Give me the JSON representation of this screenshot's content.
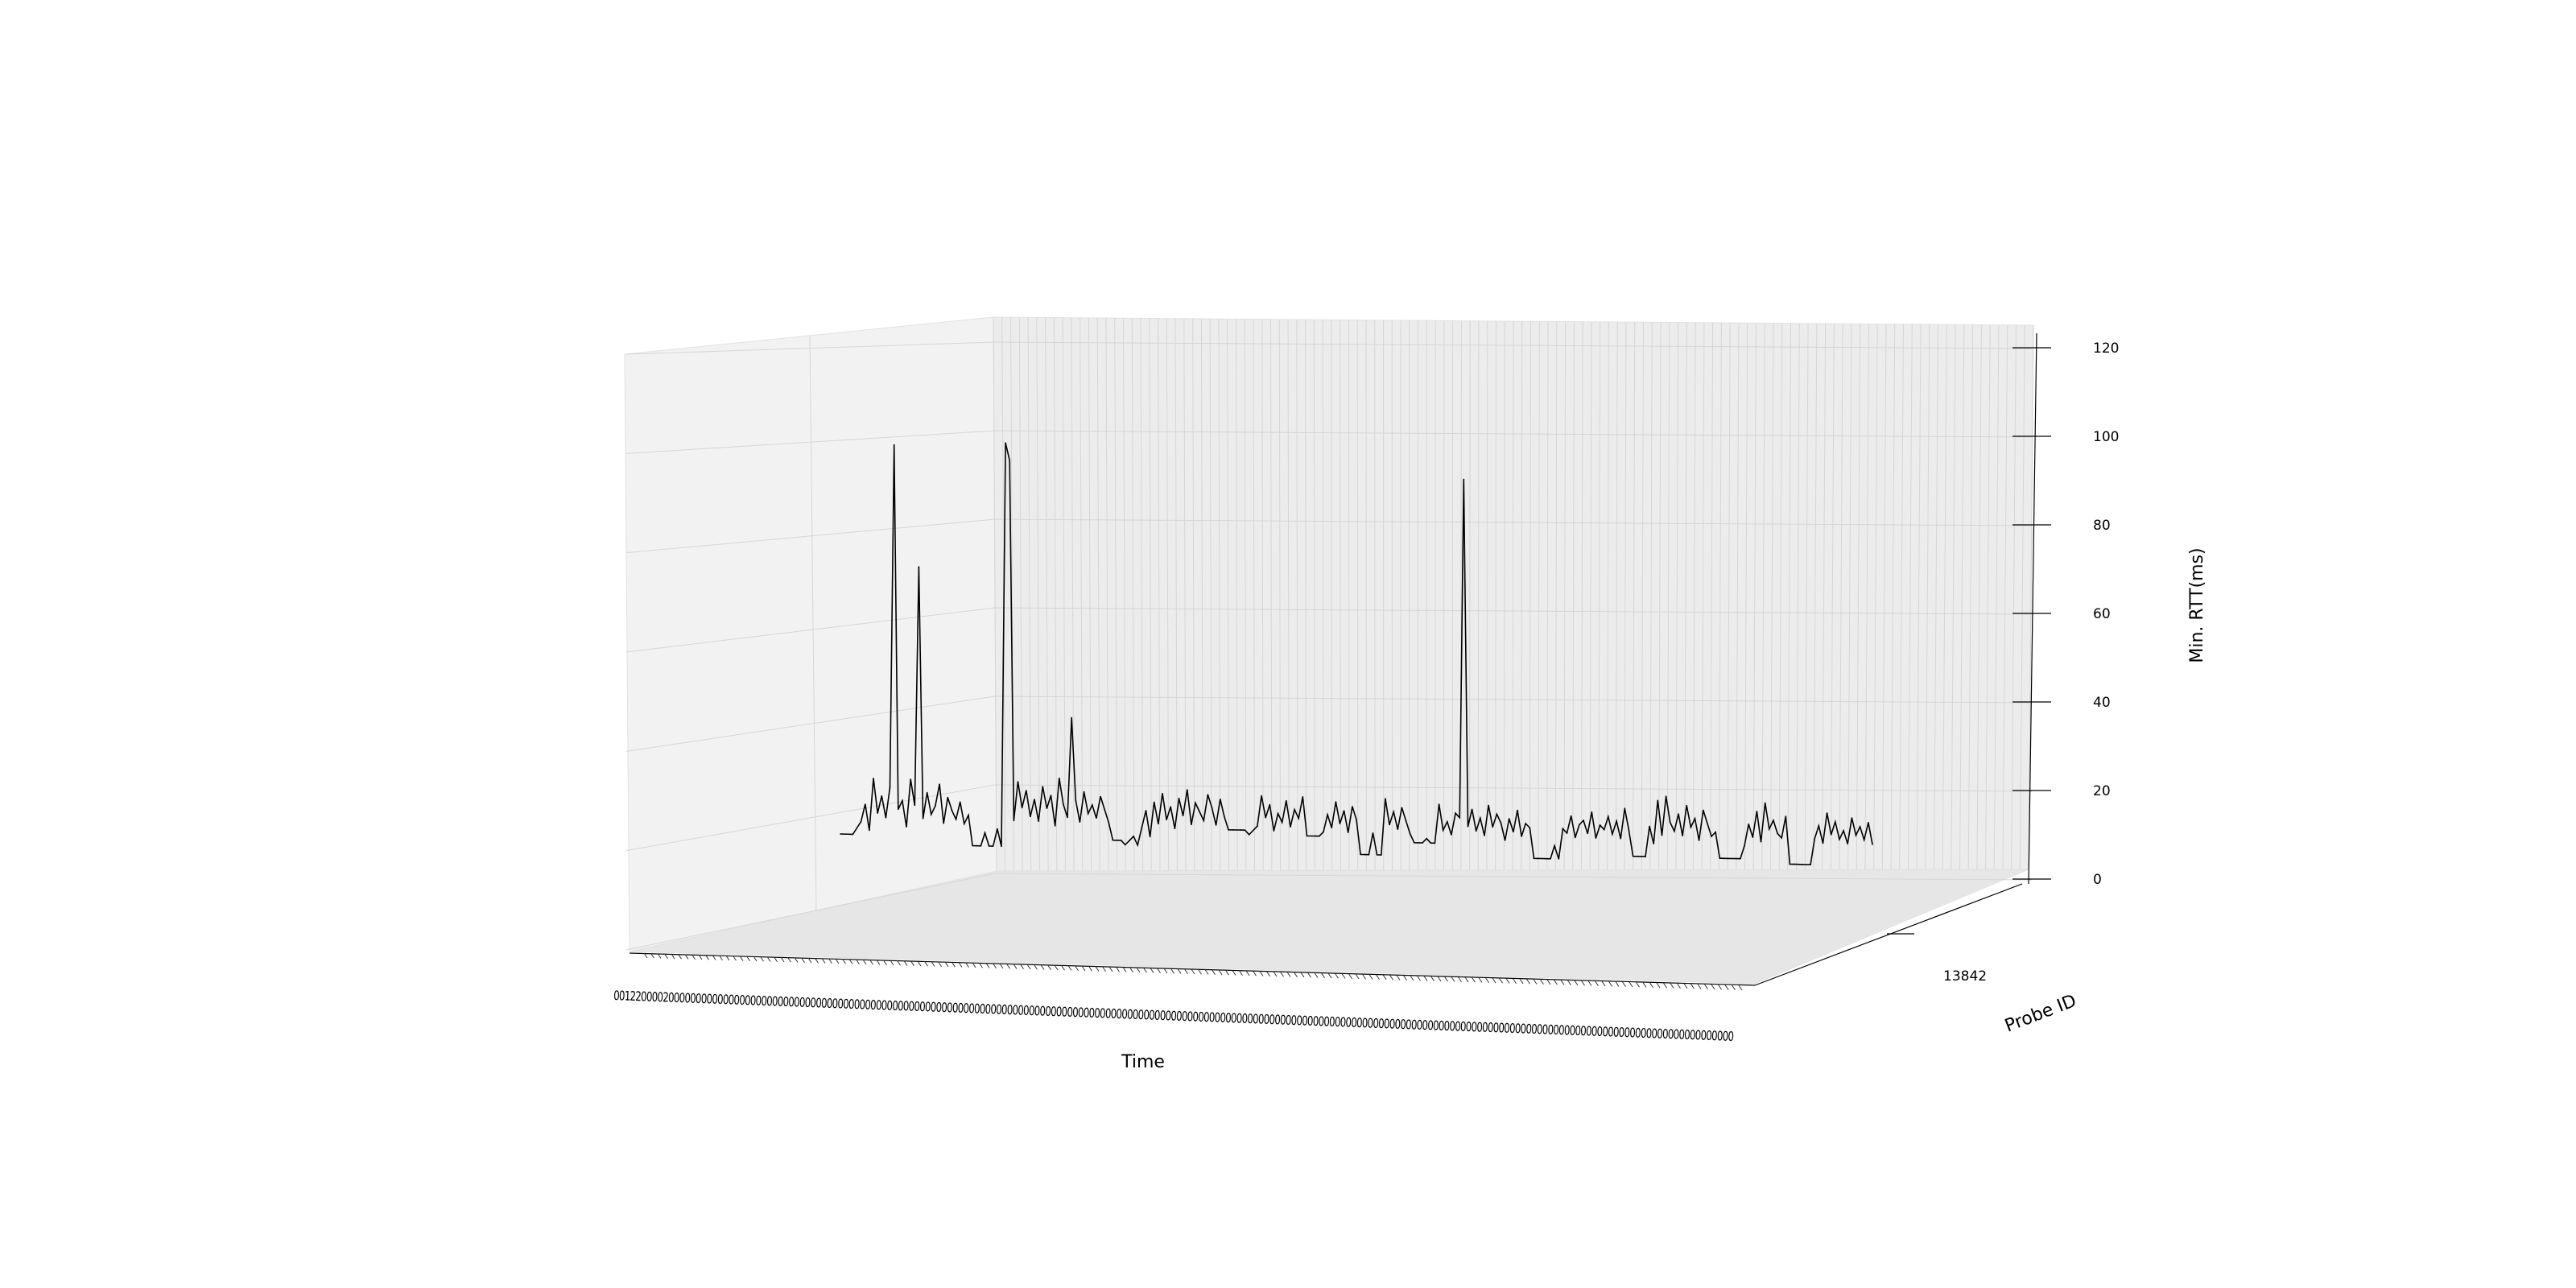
{
  "chart_data": {
    "type": "line",
    "projection": "3d",
    "xlabel": "Time",
    "ylabel": "Probe ID",
    "zlabel": "Min. RTT(ms)",
    "x_tick_text": "0012200002000000000000000000000000000000000000000000000000000000000000000000000000000000000000000000000000000000000000000000000000000000000000000000000000000000000000000000000000000000000000000000000000000",
    "y_ticks": [
      "13842"
    ],
    "zlim": [
      0,
      120
    ],
    "z_ticks": [
      0,
      20,
      40,
      60,
      80,
      100,
      120
    ],
    "grid": true,
    "colors": {
      "line": "#000000",
      "pane_left": "#f2f2f2",
      "pane_back": "#ececec",
      "pane_floor": "#e6e6e6",
      "grid": "#d6d6d6"
    },
    "series": [
      {
        "probe": "13842",
        "x": [
          0,
          0.012,
          0.02,
          0.024,
          0.028,
          0.032,
          0.036,
          0.04,
          0.044,
          0.048,
          0.052,
          0.056,
          0.06,
          0.064,
          0.068,
          0.072,
          0.076,
          0.08,
          0.084,
          0.088,
          0.092,
          0.096,
          0.1,
          0.104,
          0.108,
          0.112,
          0.116,
          0.12,
          0.124,
          0.128,
          0.132,
          0.136,
          0.14,
          0.144,
          0.148,
          0.152,
          0.156,
          0.16,
          0.164,
          0.168,
          0.172,
          0.176,
          0.18,
          0.184,
          0.188,
          0.192,
          0.196,
          0.2,
          0.204,
          0.208,
          0.212,
          0.216,
          0.22,
          0.224,
          0.228,
          0.232,
          0.236,
          0.24,
          0.244,
          0.248,
          0.252,
          0.256,
          0.26,
          0.264,
          0.268,
          0.272,
          0.276,
          0.28,
          0.284,
          0.288,
          0.292,
          0.296,
          0.3,
          0.304,
          0.308,
          0.312,
          0.316,
          0.32,
          0.324,
          0.328,
          0.332,
          0.336,
          0.34,
          0.344,
          0.348,
          0.352,
          0.356,
          0.36,
          0.364,
          0.368,
          0.372,
          0.376,
          0.38,
          0.384,
          0.388,
          0.392,
          0.396,
          0.4,
          0.404,
          0.408,
          0.412,
          0.416,
          0.42,
          0.424,
          0.428,
          0.432,
          0.436,
          0.44,
          0.444,
          0.448,
          0.452,
          0.456,
          0.46,
          0.464,
          0.468,
          0.472,
          0.476,
          0.48,
          0.484,
          0.488,
          0.492,
          0.496,
          0.5,
          0.504,
          0.508,
          0.512,
          0.516,
          0.52,
          0.524,
          0.528,
          0.532,
          0.536,
          0.54,
          0.544,
          0.548,
          0.552,
          0.556,
          0.56,
          0.564,
          0.568,
          0.572,
          0.576,
          0.58,
          0.584,
          0.588,
          0.592,
          0.596,
          0.6,
          0.604,
          0.608,
          0.612,
          0.616,
          0.62,
          0.624,
          0.628,
          0.632,
          0.636,
          0.64,
          0.644,
          0.648,
          0.652,
          0.656,
          0.66,
          0.664,
          0.668,
          0.672,
          0.676,
          0.68,
          0.684,
          0.688,
          0.692,
          0.696,
          0.7,
          0.704,
          0.708,
          0.712,
          0.716,
          0.72,
          0.724,
          0.728,
          0.732,
          0.736,
          0.74,
          0.744,
          0.748,
          0.752,
          0.756,
          0.76,
          0.764,
          0.768,
          0.772,
          0.776,
          0.78,
          0.784,
          0.788,
          0.792,
          0.796,
          0.8,
          0.804,
          0.808,
          0.812,
          0.816,
          0.82,
          0.824,
          0.828,
          0.832,
          0.836,
          0.84,
          0.844,
          0.848,
          0.852,
          0.856,
          0.86,
          0.864,
          0.868,
          0.872,
          0.876,
          0.88,
          0.884,
          0.888,
          0.892,
          0.896,
          0.9,
          0.904,
          0.908,
          0.912,
          0.916,
          0.92,
          0.924,
          0.928,
          0.932,
          0.936,
          0.94,
          0.944,
          0.948,
          0.952,
          0.956,
          0.96,
          0.964,
          0.968,
          0.972,
          0.976,
          0.98,
          0.984,
          0.988,
          0.992,
          0.996,
          1.0
        ],
        "z": [
          5,
          5,
          8,
          12,
          6,
          18,
          10,
          14,
          9,
          16,
          95,
          11,
          13,
          7,
          18,
          12,
          67,
          9,
          15,
          10,
          12,
          17,
          8,
          14,
          11,
          9,
          13,
          8,
          10,
          3,
          3,
          3,
          6,
          3,
          3,
          7,
          3,
          96,
          92,
          9,
          18,
          12,
          16,
          10,
          14,
          9,
          17,
          12,
          15,
          8,
          19,
          13,
          10,
          33,
          14,
          9,
          16,
          11,
          13,
          10,
          15,
          12,
          9,
          5,
          5,
          5,
          4,
          5,
          6,
          4,
          8,
          12,
          6,
          14,
          9,
          16,
          10,
          13,
          8,
          15,
          11,
          17,
          9,
          14,
          12,
          10,
          16,
          13,
          9,
          15,
          11,
          8,
          8,
          8,
          8,
          8,
          7,
          8,
          9,
          16,
          11,
          14,
          8,
          12,
          10,
          15,
          9,
          13,
          11,
          16,
          7,
          7,
          7,
          7,
          8,
          12,
          9,
          15,
          10,
          13,
          8,
          14,
          11,
          3,
          3,
          3,
          8,
          3,
          3,
          16,
          10,
          13,
          9,
          14,
          11,
          8,
          6,
          6,
          6,
          7,
          6,
          6,
          15,
          9,
          11,
          8,
          13,
          12,
          90,
          10,
          14,
          9,
          12,
          8,
          15,
          10,
          13,
          11,
          7,
          12,
          9,
          14,
          8,
          11,
          10,
          3,
          3,
          3,
          3,
          3,
          6,
          3,
          10,
          9,
          13,
          8,
          11,
          12,
          9,
          14,
          8,
          11,
          10,
          13,
          9,
          12,
          8,
          15,
          10,
          4,
          4,
          4,
          4,
          11,
          7,
          17,
          9,
          18,
          12,
          10,
          14,
          9,
          16,
          11,
          13,
          8,
          15,
          12,
          9,
          10,
          4,
          4,
          4,
          4,
          4,
          4,
          7,
          12,
          9,
          15,
          8,
          17,
          11,
          13,
          10,
          9,
          14,
          3,
          3,
          3,
          3,
          3,
          3,
          9,
          12,
          8,
          15,
          10,
          13,
          9,
          11,
          8,
          14,
          10,
          12,
          9,
          13,
          8,
          11,
          15,
          10,
          3,
          3
        ]
      }
    ]
  }
}
